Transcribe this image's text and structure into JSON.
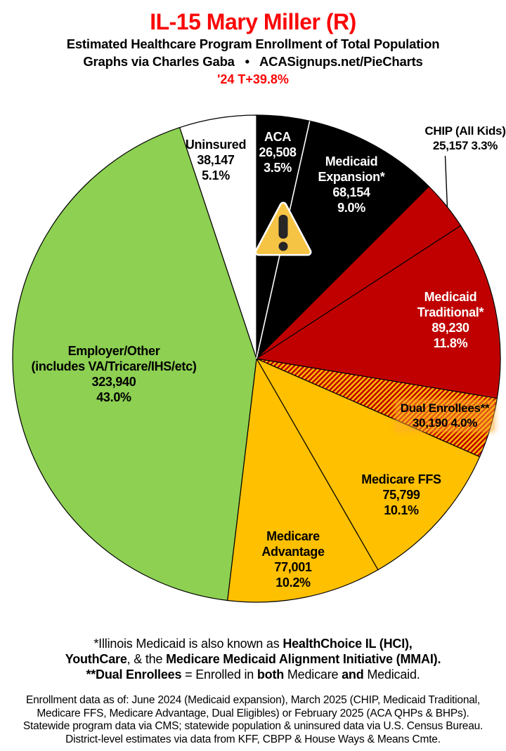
{
  "header": {
    "title": "IL-15 Mary Miller (R)",
    "subtitle": "Estimated Healthcare Program Enrollment of Total Population",
    "credit": "Graphs via Charles Gaba   •   ACASignups.net/PieCharts",
    "trend": "'24 T+39.8%",
    "accent_red": "#fa0707"
  },
  "chart_data": {
    "type": "pie",
    "title": "IL-15 Mary Miller (R) — Estimated Healthcare Program Enrollment of Total Population",
    "start_angle_deg": 0,
    "direction": "clockwise",
    "slice_border_color": "#000000",
    "divider_color": "#ffffff",
    "hatch": {
      "colors": [
        "#c00000",
        "#ffc000"
      ]
    },
    "slices": [
      {
        "id": "aca",
        "label": "ACA",
        "value": 26508,
        "value_text": "26,508",
        "pct": 3.5,
        "pct_text": "3.5%",
        "fill": "#000000"
      },
      {
        "id": "medicaid-expansion",
        "label": "Medicaid Expansion*",
        "value": 68154,
        "value_text": "68,154",
        "pct": 9.0,
        "pct_text": "9.0%",
        "fill": "#000000"
      },
      {
        "id": "chip",
        "label": "CHIP (All Kids)",
        "value": 25157,
        "value_text": "25,157",
        "pct": 3.3,
        "pct_text": "3.3%",
        "fill": "#c00000"
      },
      {
        "id": "medicaid-traditional",
        "label": "Medicaid Traditional*",
        "value": 89230,
        "value_text": "89,230",
        "pct": 11.8,
        "pct_text": "11.8%",
        "fill": "#c00000"
      },
      {
        "id": "dual-enrollees",
        "label": "Dual Enrollees**",
        "value": 30190,
        "value_text": "30,190",
        "pct": 4.0,
        "pct_text": "4.0%",
        "fill": "pattern:hatch"
      },
      {
        "id": "medicare-ffs",
        "label": "Medicare FFS",
        "value": 75799,
        "value_text": "75,799",
        "pct": 10.1,
        "pct_text": "10.1%",
        "fill": "#ffc000"
      },
      {
        "id": "medicare-advantage",
        "label": "Medicare Advantage",
        "value": 77001,
        "value_text": "77,001",
        "pct": 10.2,
        "pct_text": "10.2%",
        "fill": "#ffc000"
      },
      {
        "id": "employer-other",
        "label": "Employer/Other (includes VA/Tricare/IHS/etc)",
        "value": 323940,
        "value_text": "323,940",
        "pct": 43.0,
        "pct_text": "43.0%",
        "fill": "#8dd052"
      },
      {
        "id": "uninsured",
        "label": "Uninsured",
        "value": 38147,
        "value_text": "38,147",
        "pct": 5.1,
        "pct_text": "5.1%",
        "fill": "#ffffff"
      }
    ]
  },
  "labels": {
    "aca": {
      "lines": [
        "ACA",
        "26,508",
        "3.5%"
      ]
    },
    "medicaid_expansion": {
      "lines": [
        "Medicaid",
        "Expansion*",
        "68,154",
        "9.0%"
      ]
    },
    "chip": {
      "lines": [
        "CHIP (All Kids)",
        "25,157 3.3%"
      ]
    },
    "medicaid_traditional": {
      "lines": [
        "Medicaid",
        "Traditional*",
        "89,230",
        "11.8%"
      ]
    },
    "dual": {
      "lines": [
        "Dual Enrollees**",
        "30,190 4.0%"
      ]
    },
    "medicare_ffs": {
      "lines": [
        "Medicare FFS",
        "75,799",
        "10.1%"
      ]
    },
    "medicare_advantage": {
      "lines": [
        "Medicare",
        "Advantage",
        "77,001",
        "10.2%"
      ]
    },
    "employer": {
      "lines": [
        "Employer/Other",
        "(includes VA/Tricare/IHS/etc)",
        "323,940",
        "43.0%"
      ]
    },
    "uninsured": {
      "lines": [
        "Uninsured",
        "38,147",
        "5.1%"
      ]
    }
  },
  "footnotes": {
    "line1": {
      "seg1": "*Illinois Medicaid is also known as ",
      "seg2": "HealthChoice IL (HCI),"
    },
    "line2": {
      "seg1": "YouthCare",
      "seg2": ", & the ",
      "seg3": "Medicare Medicaid Alignment Initiative (MMAI)."
    },
    "line3": {
      "seg1": "**Dual Enrollees",
      "seg2": " = Enrolled in ",
      "seg3": "both",
      "seg4": " Medicare ",
      "seg5": "and",
      "seg6": " Medicaid."
    }
  },
  "sources": {
    "line1": "Enrollment data as of: June 2024 (Medicaid expansion), March 2025 (CHIP, Medicaid Traditional,",
    "line2": "Medicare FFS, Medicare Advantage, Dual Eligibles) or February 2025 (ACA QHPs & BHPs).",
    "line3": "Statewide program data via CMS; statewide population & uninsured data via U.S. Census Bureau.",
    "line4": "District-level estimates via data from KFF, CBPP & House Ways & Means Cmte."
  },
  "icons": {
    "warning_triangle_fill": "#f6c445",
    "warning_triangle_border": "#ffffff",
    "warning_exclamation": "#262626"
  }
}
